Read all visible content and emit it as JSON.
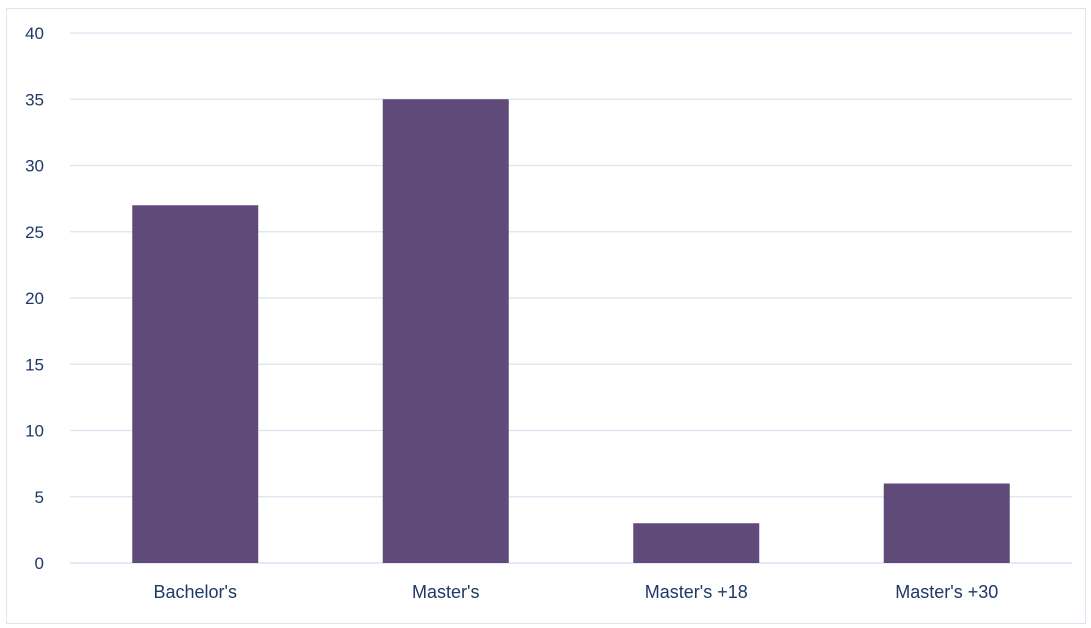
{
  "chart_data": {
    "type": "bar",
    "categories": [
      "Bachelor's",
      "Master's",
      "Master's +18",
      "Master's +30"
    ],
    "values": [
      27,
      35,
      3,
      6
    ],
    "ylim": [
      0,
      40
    ],
    "yticks": [
      0,
      5,
      10,
      15,
      20,
      25,
      30,
      35,
      40
    ],
    "grid": true,
    "colors": {
      "bar": "#5f4a7a",
      "grid": "#d9e4f2",
      "text": "#1f3864"
    }
  }
}
